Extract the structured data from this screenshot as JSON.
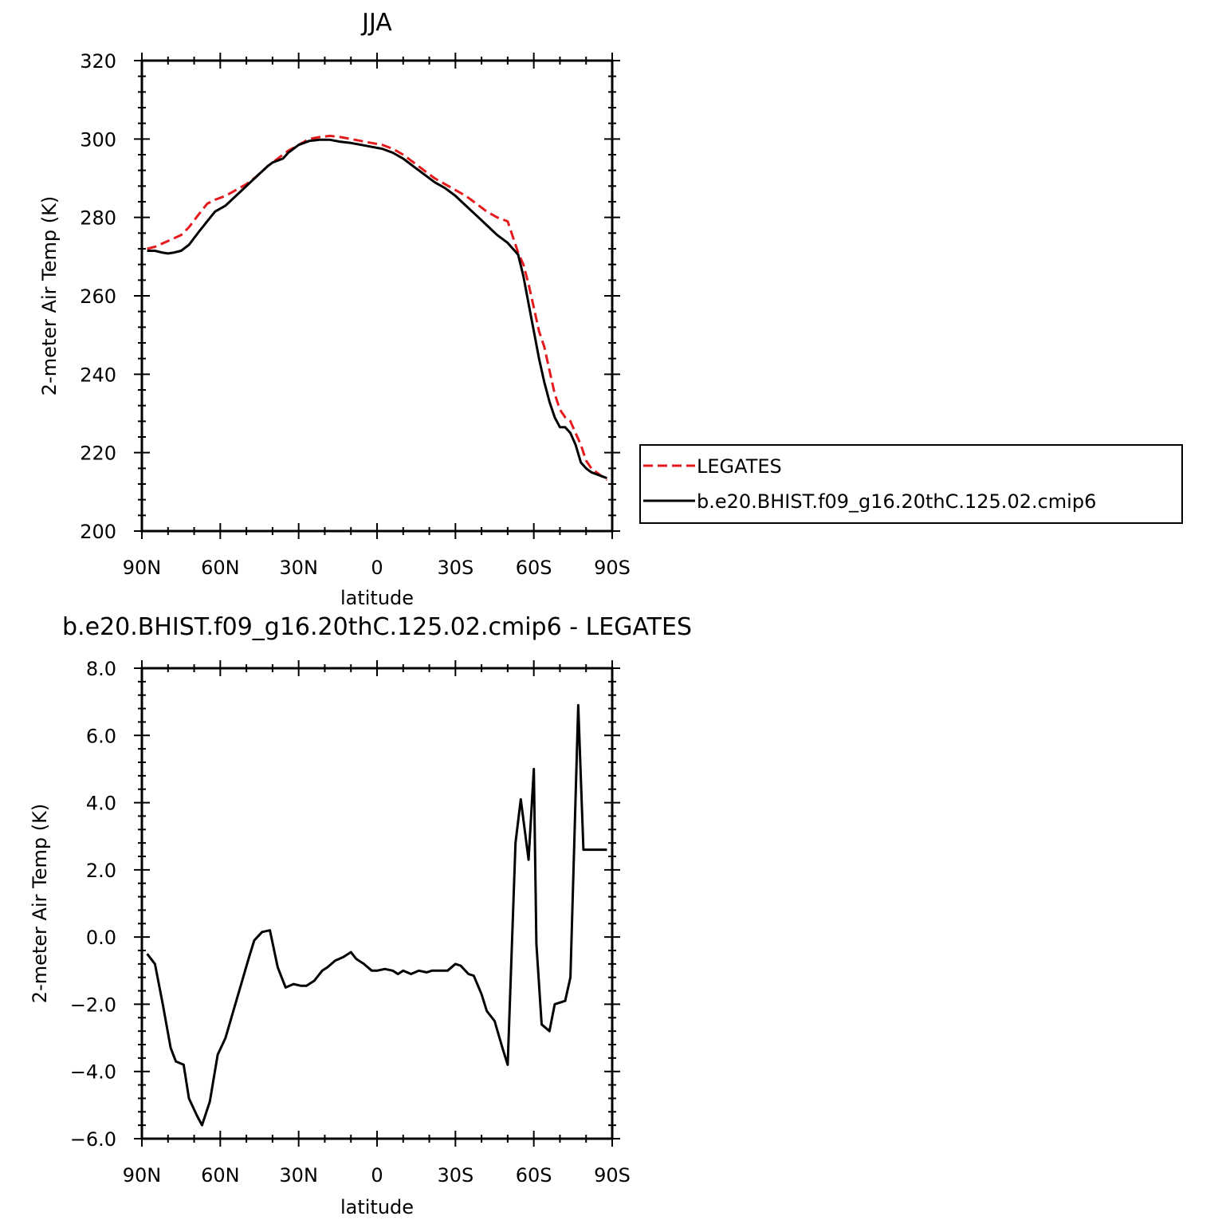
{
  "chart_data": [
    {
      "type": "line",
      "title": "JJA",
      "xlabel": "latitude",
      "ylabel": "2-meter Air Temp (K)",
      "xlim": [
        90,
        -90
      ],
      "ylim": [
        200,
        320
      ],
      "x_ticks": [
        90,
        60,
        30,
        0,
        -30,
        -60,
        -90
      ],
      "x_tick_labels": [
        "90N",
        "60N",
        "30N",
        "0",
        "30S",
        "60S",
        "90S"
      ],
      "y_ticks": [
        200,
        220,
        240,
        260,
        280,
        300,
        320
      ],
      "y_tick_labels": [
        "200",
        "220",
        "240",
        "260",
        "280",
        "300",
        "320"
      ],
      "legend": "right",
      "series": [
        {
          "name": "LEGATES",
          "color": "#e41a1c",
          "style": "dashed",
          "x": [
            88,
            85,
            80,
            75,
            72,
            68,
            65,
            62,
            58,
            54,
            50,
            46,
            42,
            38,
            34,
            30,
            26,
            22,
            18,
            14,
            10,
            6,
            2,
            -2,
            -6,
            -10,
            -14,
            -18,
            -22,
            -26,
            -30,
            -34,
            -38,
            -42,
            -46,
            -50,
            -54,
            -56,
            -58,
            -60,
            -62,
            -64,
            -66,
            -68,
            -70,
            -72,
            -74,
            -76,
            -78,
            -80,
            -82,
            -84,
            -86,
            -88
          ],
          "y": [
            272,
            272.5,
            274,
            275.5,
            277.5,
            281,
            283.5,
            284.5,
            285.5,
            287,
            288.5,
            290.5,
            293,
            295,
            297,
            298.5,
            300,
            300.5,
            300.8,
            300.5,
            300,
            299.5,
            299,
            298.5,
            297.5,
            296,
            294,
            292,
            290,
            288.5,
            287,
            285.5,
            283.5,
            281.5,
            280,
            279,
            271,
            268,
            263,
            257,
            251,
            247,
            241,
            235,
            231,
            229,
            228,
            225,
            222,
            218,
            216,
            215,
            214,
            213
          ]
        },
        {
          "name": "b.e20.BHIST.f09_g16.20thC.125.02.cmip6",
          "color": "#000000",
          "style": "solid",
          "x": [
            88,
            85,
            82,
            80,
            78,
            75,
            72,
            68,
            65,
            62,
            58,
            54,
            50,
            46,
            42,
            40,
            38,
            36,
            34,
            30,
            26,
            22,
            18,
            14,
            10,
            6,
            2,
            -2,
            -6,
            -10,
            -14,
            -18,
            -22,
            -26,
            -30,
            -34,
            -38,
            -42,
            -46,
            -50,
            -54,
            -56,
            -58,
            -60,
            -62,
            -64,
            -66,
            -68,
            -70,
            -72,
            -74,
            -76,
            -78,
            -80,
            -82,
            -84,
            -86,
            -88
          ],
          "y": [
            271.5,
            271.5,
            271,
            270.8,
            271,
            271.5,
            273,
            276.5,
            279,
            281.5,
            283,
            285.5,
            288,
            290.5,
            293,
            294,
            294.5,
            295,
            296.5,
            298.5,
            299.5,
            299.8,
            299.8,
            299.3,
            299,
            298.5,
            298,
            297.5,
            296.5,
            295,
            293,
            291,
            289,
            287.5,
            285.5,
            283,
            280.5,
            278,
            275.5,
            273.5,
            270.5,
            265,
            258,
            251,
            244,
            238,
            233,
            229,
            226.5,
            226.5,
            225,
            222,
            217.5,
            216,
            215,
            214.5,
            214,
            213.5
          ]
        }
      ]
    },
    {
      "type": "line",
      "title": "b.e20.BHIST.f09_g16.20thC.125.02.cmip6 - LEGATES",
      "xlabel": "latitude",
      "ylabel": "2-meter Air Temp (K)",
      "xlim": [
        90,
        -90
      ],
      "ylim": [
        -6.0,
        8.0
      ],
      "x_ticks": [
        90,
        60,
        30,
        0,
        -30,
        -60,
        -90
      ],
      "x_tick_labels": [
        "90N",
        "60N",
        "30N",
        "0",
        "30S",
        "60S",
        "90S"
      ],
      "y_ticks": [
        -6.0,
        -4.0,
        -2.0,
        0.0,
        2.0,
        4.0,
        6.0,
        8.0
      ],
      "y_tick_labels": [
        "−6.0",
        "−4.0",
        "−2.0",
        "0.0",
        "2.0",
        "4.0",
        "6.0",
        "8.0"
      ],
      "series": [
        {
          "name": "",
          "color": "#000000",
          "style": "solid",
          "x": [
            88,
            85,
            82,
            79,
            77,
            74,
            72,
            69,
            67,
            64,
            61,
            58,
            55,
            52,
            49,
            47,
            44,
            41,
            38,
            35,
            32,
            29,
            27,
            24,
            21,
            19,
            16,
            13,
            10,
            8,
            5,
            2,
            0,
            -3,
            -6,
            -8,
            -10,
            -13,
            -16,
            -19,
            -21,
            -24,
            -27,
            -30,
            -32,
            -35,
            -37,
            -40,
            -42,
            -45,
            -48,
            -50,
            -53,
            -55,
            -58,
            -60,
            -61,
            -63,
            -66,
            -68,
            -72,
            -74,
            -77,
            -79,
            -82,
            -84,
            -86,
            -88
          ],
          "y": [
            -0.5,
            -0.8,
            -2.0,
            -3.3,
            -3.7,
            -3.8,
            -4.8,
            -5.3,
            -5.6,
            -4.9,
            -3.5,
            -3.0,
            -2.2,
            -1.4,
            -0.6,
            -0.1,
            0.15,
            0.2,
            -0.9,
            -1.5,
            -1.4,
            -1.45,
            -1.45,
            -1.3,
            -1.0,
            -0.9,
            -0.7,
            -0.6,
            -0.45,
            -0.65,
            -0.8,
            -1.0,
            -1.0,
            -0.95,
            -1.0,
            -1.1,
            -1.0,
            -1.1,
            -1.0,
            -1.05,
            -1.0,
            -1.0,
            -1.0,
            -0.8,
            -0.85,
            -1.1,
            -1.15,
            -1.7,
            -2.2,
            -2.5,
            -3.3,
            -3.8,
            2.8,
            4.1,
            2.3,
            5.0,
            -0.2,
            -2.6,
            -2.8,
            -2.0,
            -1.9,
            -1.2,
            6.9,
            2.6,
            2.6,
            2.6,
            2.6,
            2.6
          ]
        }
      ]
    }
  ]
}
